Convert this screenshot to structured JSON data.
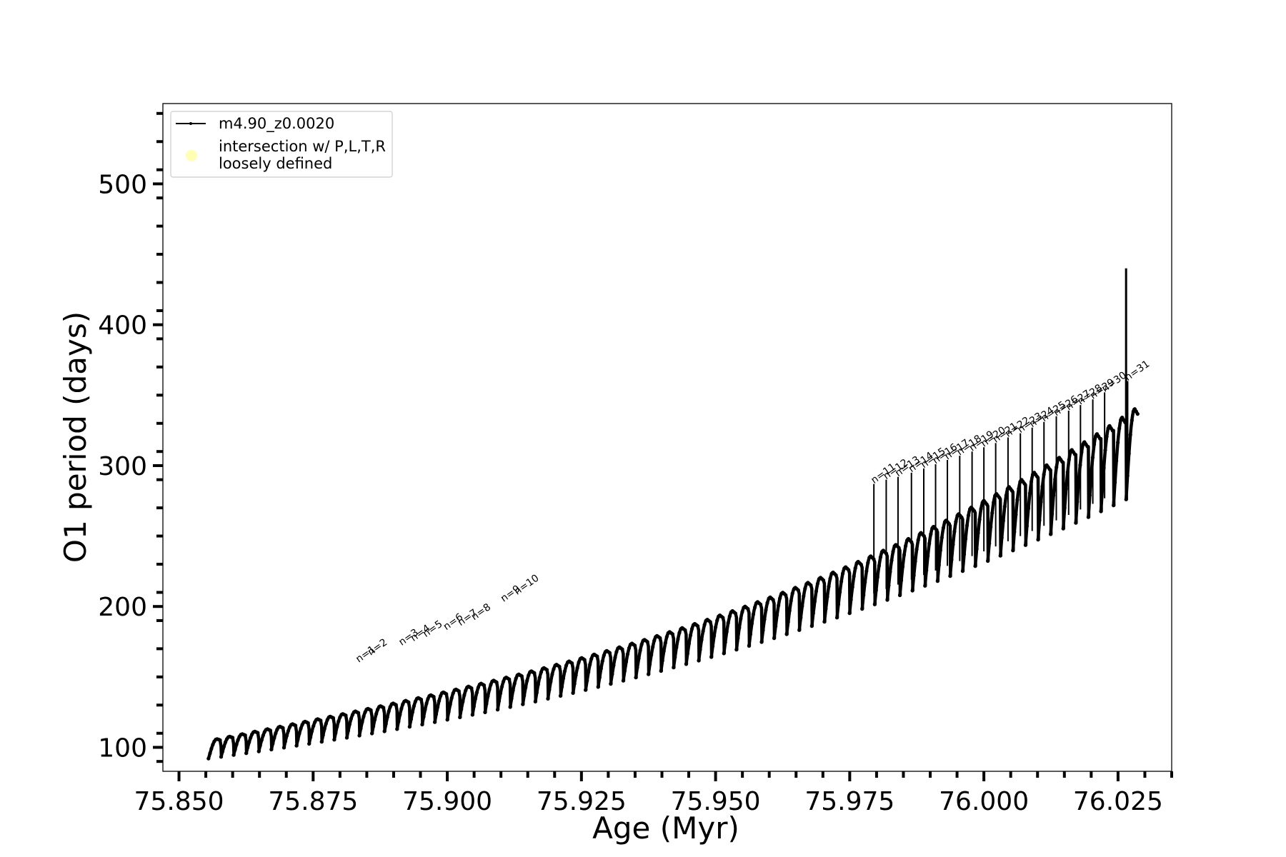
{
  "chart_data": {
    "type": "line",
    "title": "",
    "xlabel": "Age (Myr)",
    "ylabel": "O1 period (days)",
    "xlim": [
      75.847,
      76.035
    ],
    "ylim": [
      83,
      557
    ],
    "xticks": [
      75.85,
      75.875,
      75.9,
      75.925,
      75.95,
      75.975,
      76.0,
      76.025
    ],
    "xtick_labels": [
      "75.850",
      "75.875",
      "75.900",
      "75.925",
      "75.950",
      "75.975",
      "76.000",
      "76.025"
    ],
    "yticks": [
      100,
      200,
      300,
      400,
      500
    ],
    "ytick_labels": [
      "100",
      "200",
      "300",
      "400",
      "500"
    ],
    "grid": false,
    "legend": {
      "location": "upper-left",
      "entries": [
        {
          "label": "m4.90_z0.0020",
          "marker": "line-with-dots",
          "color": "#000000"
        },
        {
          "label": [
            "intersection w/ P,L,T,R",
            "loosely defined"
          ],
          "marker": "circle",
          "color": "#ffffb3"
        }
      ]
    },
    "series": [
      {
        "name": "m4.90_z0.0020",
        "color": "#000000",
        "loop_count": 74,
        "x_start": 75.8555,
        "x_end": 76.0265,
        "upper_envelope_start": 105,
        "lower_envelope_start": 92,
        "upper_envelope_end": 337,
        "lower_envelope_end": 276
      }
    ],
    "spikes": [
      {
        "x": 76.0265,
        "peak": 440
      }
    ],
    "annotations": [
      {
        "text": "n=1",
        "x": 75.8835,
        "y": 160
      },
      {
        "text": "n=2",
        "x": 75.8857,
        "y": 165
      },
      {
        "text": "n=3",
        "x": 75.8915,
        "y": 172
      },
      {
        "text": "n=4",
        "x": 75.8937,
        "y": 175
      },
      {
        "text": "n=5",
        "x": 75.896,
        "y": 178
      },
      {
        "text": "n=6",
        "x": 75.8998,
        "y": 183
      },
      {
        "text": "n=7",
        "x": 75.9025,
        "y": 186
      },
      {
        "text": "n=8",
        "x": 75.905,
        "y": 190
      },
      {
        "text": "n=9",
        "x": 75.9105,
        "y": 203
      },
      {
        "text": "n=10",
        "x": 75.913,
        "y": 208
      },
      {
        "text": "n=11",
        "x": 75.9795,
        "y": 287
      },
      {
        "text": "n=12",
        "x": 75.9818,
        "y": 290
      },
      {
        "text": "n=13",
        "x": 75.984,
        "y": 292
      },
      {
        "text": "n=14",
        "x": 75.9865,
        "y": 295
      },
      {
        "text": "n=15",
        "x": 75.9888,
        "y": 298
      },
      {
        "text": "n=16",
        "x": 75.991,
        "y": 301
      },
      {
        "text": "n=17",
        "x": 75.9932,
        "y": 304
      },
      {
        "text": "n=18",
        "x": 75.9955,
        "y": 307
      },
      {
        "text": "n=19",
        "x": 75.9978,
        "y": 310
      },
      {
        "text": "n=20",
        "x": 76.0,
        "y": 313
      },
      {
        "text": "n=21",
        "x": 76.0022,
        "y": 316
      },
      {
        "text": "n=22",
        "x": 76.0045,
        "y": 320
      },
      {
        "text": "n=23",
        "x": 76.0068,
        "y": 323
      },
      {
        "text": "n=24",
        "x": 76.009,
        "y": 327
      },
      {
        "text": "n=25",
        "x": 76.0112,
        "y": 331
      },
      {
        "text": "n=26",
        "x": 76.0135,
        "y": 335
      },
      {
        "text": "n=27",
        "x": 76.0158,
        "y": 339
      },
      {
        "text": "n=28",
        "x": 76.018,
        "y": 343
      },
      {
        "text": "n=29",
        "x": 76.0203,
        "y": 347
      },
      {
        "text": "n=30",
        "x": 76.0225,
        "y": 352
      },
      {
        "text": "n=31",
        "x": 76.0268,
        "y": 360
      }
    ]
  }
}
